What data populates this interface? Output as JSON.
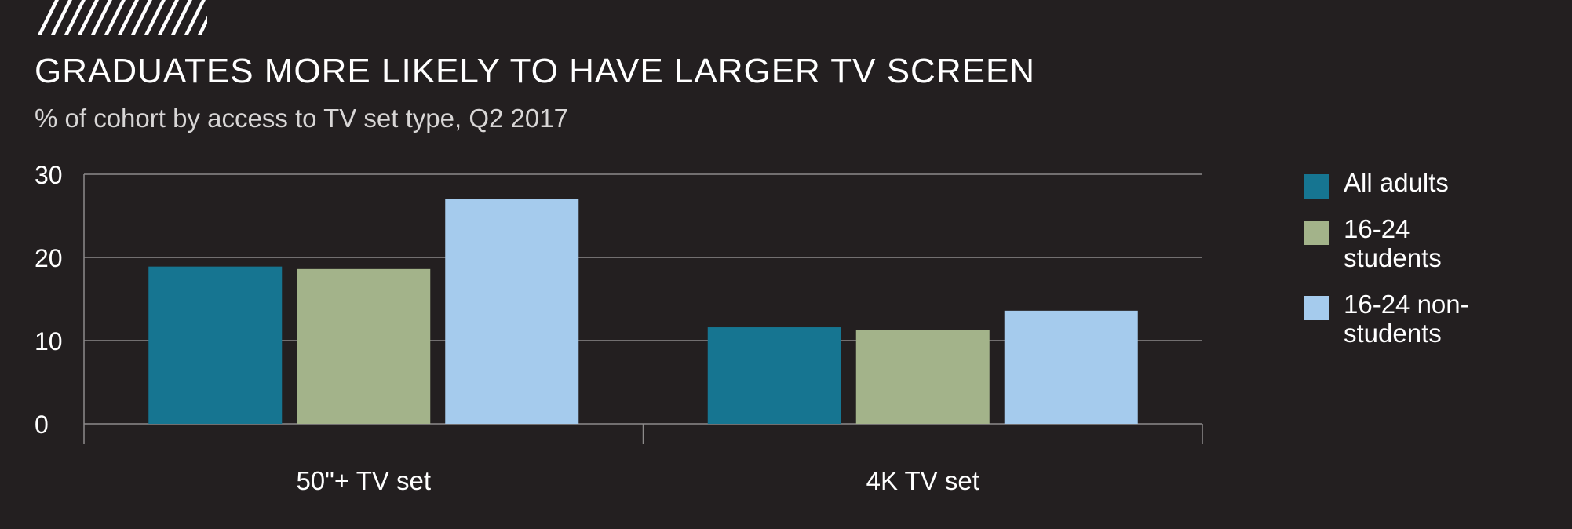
{
  "title": "GRADUATES MORE LIKELY TO HAVE LARGER TV SCREEN",
  "subtitle": "% of cohort by access to TV set type, Q2 2017",
  "colors": {
    "background": "#231f20",
    "all_adults": "#167591",
    "students": "#a3b38a",
    "non_students": "#a5cbed",
    "gridline": "#8c8a8a",
    "logo_stripes": "#ffffff"
  },
  "logo": {
    "icon": "diagonal-stripes-icon"
  },
  "chart_data": {
    "type": "bar",
    "title": "GRADUATES MORE LIKELY TO HAVE LARGER TV SCREEN",
    "subtitle": "% of cohort by access to TV set type, Q2 2017",
    "xlabel": "",
    "ylabel": "",
    "categories": [
      "50\"+ TV set",
      "4K TV set"
    ],
    "series": [
      {
        "name": "All adults",
        "color": "#167591",
        "values": [
          18.9,
          11.6
        ]
      },
      {
        "name": "16-24 students",
        "legend_lines": [
          "16-24",
          "students"
        ],
        "color": "#a3b38a",
        "values": [
          18.6,
          11.3
        ]
      },
      {
        "name": "16-24 non-students",
        "legend_lines": [
          "16-24 non-",
          "students"
        ],
        "color": "#a5cbed",
        "values": [
          27.0,
          13.6
        ]
      }
    ],
    "ylim": [
      0,
      30
    ],
    "yticks": [
      "0",
      "10",
      "20",
      "30"
    ],
    "grid": true,
    "legend_position": "right"
  }
}
